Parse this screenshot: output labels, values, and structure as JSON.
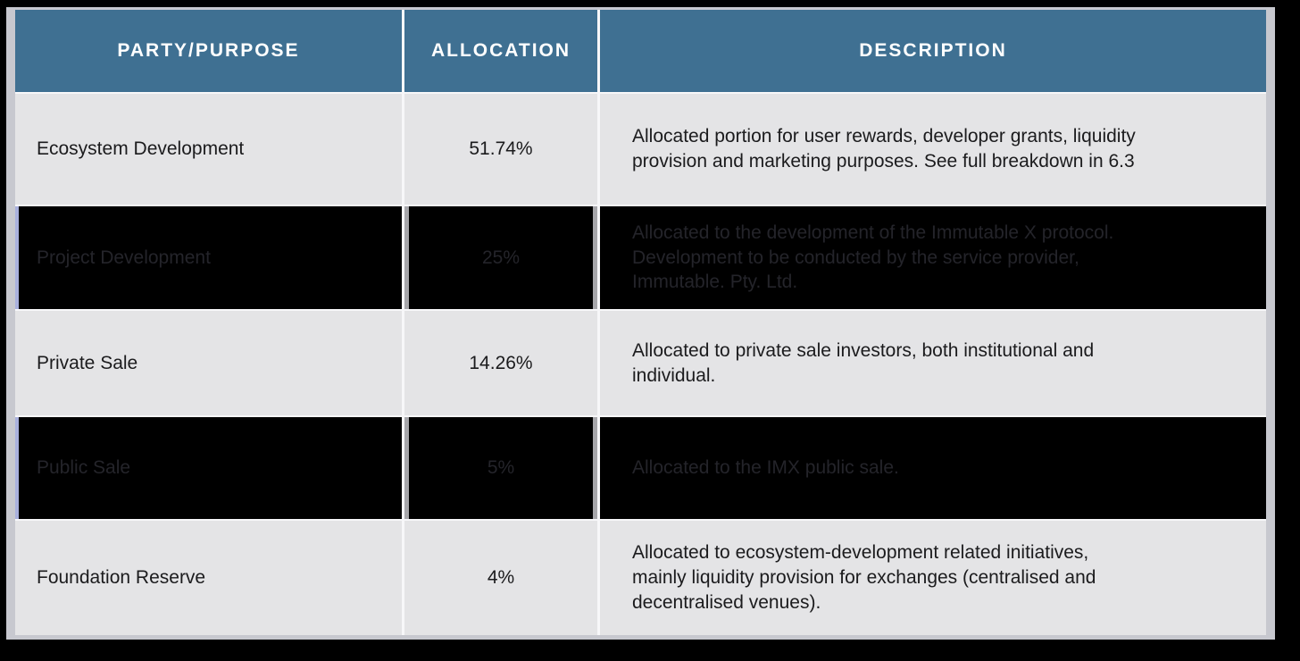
{
  "table": {
    "header": {
      "party_label": "PARTY/PURPOSE",
      "allocation_label": "ALLOCATION",
      "description_label": "DESCRIPTION"
    },
    "rows": [
      {
        "party": "Ecosystem Development",
        "allocation": "51.74%",
        "description": "Allocated portion for user rewards, developer grants, liquidity\nprovision and marketing purposes. See full breakdown in 6.3",
        "variant": "light"
      },
      {
        "party": "Project Development",
        "allocation": "25%",
        "description": "Allocated to the development of the Immutable X protocol.\nDevelopment to be conducted by the service provider,\nImmutable. Pty. Ltd.",
        "variant": "dark"
      },
      {
        "party": "Private Sale",
        "allocation": "14.26%",
        "description": "Allocated to private sale investors, both institutional and\nindividual.",
        "variant": "light"
      },
      {
        "party": "Public Sale",
        "allocation": "5%",
        "description": "Allocated to the IMX public sale.",
        "variant": "dark"
      },
      {
        "party": "Foundation Reserve",
        "allocation": "4%",
        "description": "Allocated to ecosystem-development related initiatives,\nmainly liquidity provision for exchanges (centralised and\ndecentralised venues).",
        "variant": "light"
      }
    ]
  },
  "colors": {
    "page_bg": "#000000",
    "frame_border": "#c7c8cf",
    "header_bg": "#3f7092",
    "header_text": "#ffffff",
    "row_light_bg": "#e4e4e6",
    "row_dark_bg": "#000000",
    "body_text": "#1b1b1d",
    "dark_row_text": "#24242a",
    "dark_row_left_accent": "#a9b0dd",
    "dark_row_divider": "#a6a6aa"
  }
}
